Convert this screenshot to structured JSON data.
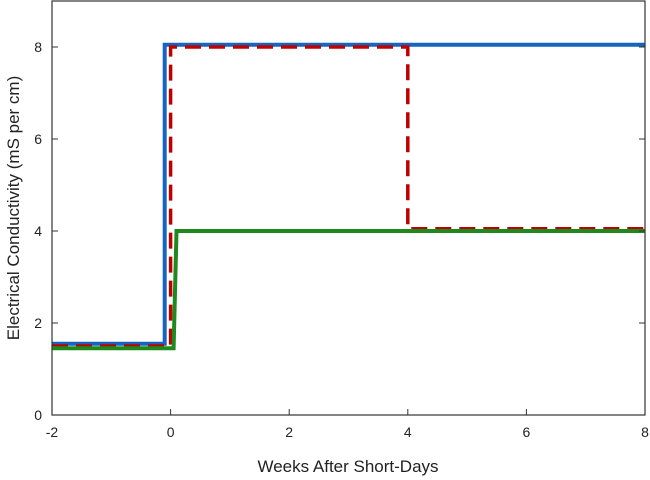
{
  "chart_data": {
    "type": "line",
    "title": "",
    "xlabel": "Weeks After Short-Days",
    "ylabel": "Electrical Conductivity (mS per cm)",
    "xlim": [
      -2,
      8
    ],
    "ylim": [
      0,
      9
    ],
    "xticks": [
      -2,
      0,
      2,
      4,
      6,
      8
    ],
    "yticks": [
      0,
      2,
      4,
      6,
      8
    ],
    "grid": false,
    "legend": null,
    "series": [
      {
        "name": "blue-solid",
        "color": "#1565C0",
        "style": "solid",
        "x": [
          -2,
          -0.1,
          -0.1,
          8
        ],
        "y": [
          1.55,
          1.55,
          8.05,
          8.05
        ]
      },
      {
        "name": "red-dashed",
        "color": "#C00000",
        "style": "dashed",
        "x": [
          -2,
          0,
          0,
          4,
          4,
          8
        ],
        "y": [
          1.5,
          1.5,
          8.0,
          8.0,
          4.05,
          4.05
        ]
      },
      {
        "name": "green-solid",
        "color": "#1E8A1E",
        "style": "solid",
        "x": [
          -2,
          0.05,
          0.1,
          8
        ],
        "y": [
          1.45,
          1.45,
          4.0,
          4.0
        ]
      }
    ]
  }
}
